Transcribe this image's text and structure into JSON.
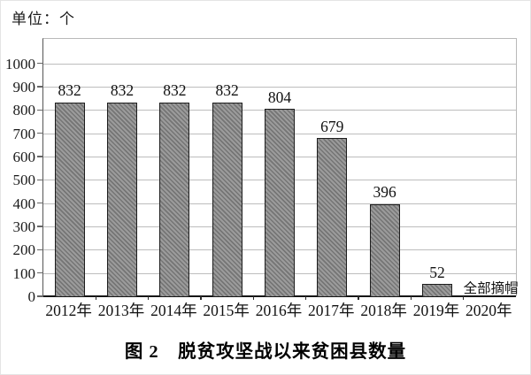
{
  "unit_label": "单位：个",
  "caption": "图 2　脱贫攻坚战以来贫困县数量",
  "chart_data": {
    "type": "bar",
    "title": "图 2　脱贫攻坚战以来贫困县数量",
    "unit": "单位：个",
    "categories": [
      "2012年",
      "2013年",
      "2014年",
      "2015年",
      "2016年",
      "2017年",
      "2018年",
      "2019年",
      "2020年"
    ],
    "values": [
      832,
      832,
      832,
      832,
      804,
      679,
      396,
      52,
      null
    ],
    "bar_labels": [
      "832",
      "832",
      "832",
      "832",
      "804",
      "679",
      "396",
      "52",
      ""
    ],
    "yticks": [
      0,
      100,
      200,
      300,
      400,
      500,
      600,
      700,
      800,
      900,
      1000
    ],
    "ylim": [
      0,
      1105
    ],
    "grid": "horizontal",
    "legend": "none",
    "annotations": [
      {
        "text": "全部摘帽",
        "category_index": 8,
        "near_value": 52
      }
    ],
    "colors": {
      "bar_fill": "#9b9b9b",
      "bar_hatch": "#757575",
      "bar_border": "#1d1d1d",
      "gridline": "#bdbdbd",
      "axis": "#161616",
      "text": "#111111",
      "background": "#ffffff"
    }
  }
}
